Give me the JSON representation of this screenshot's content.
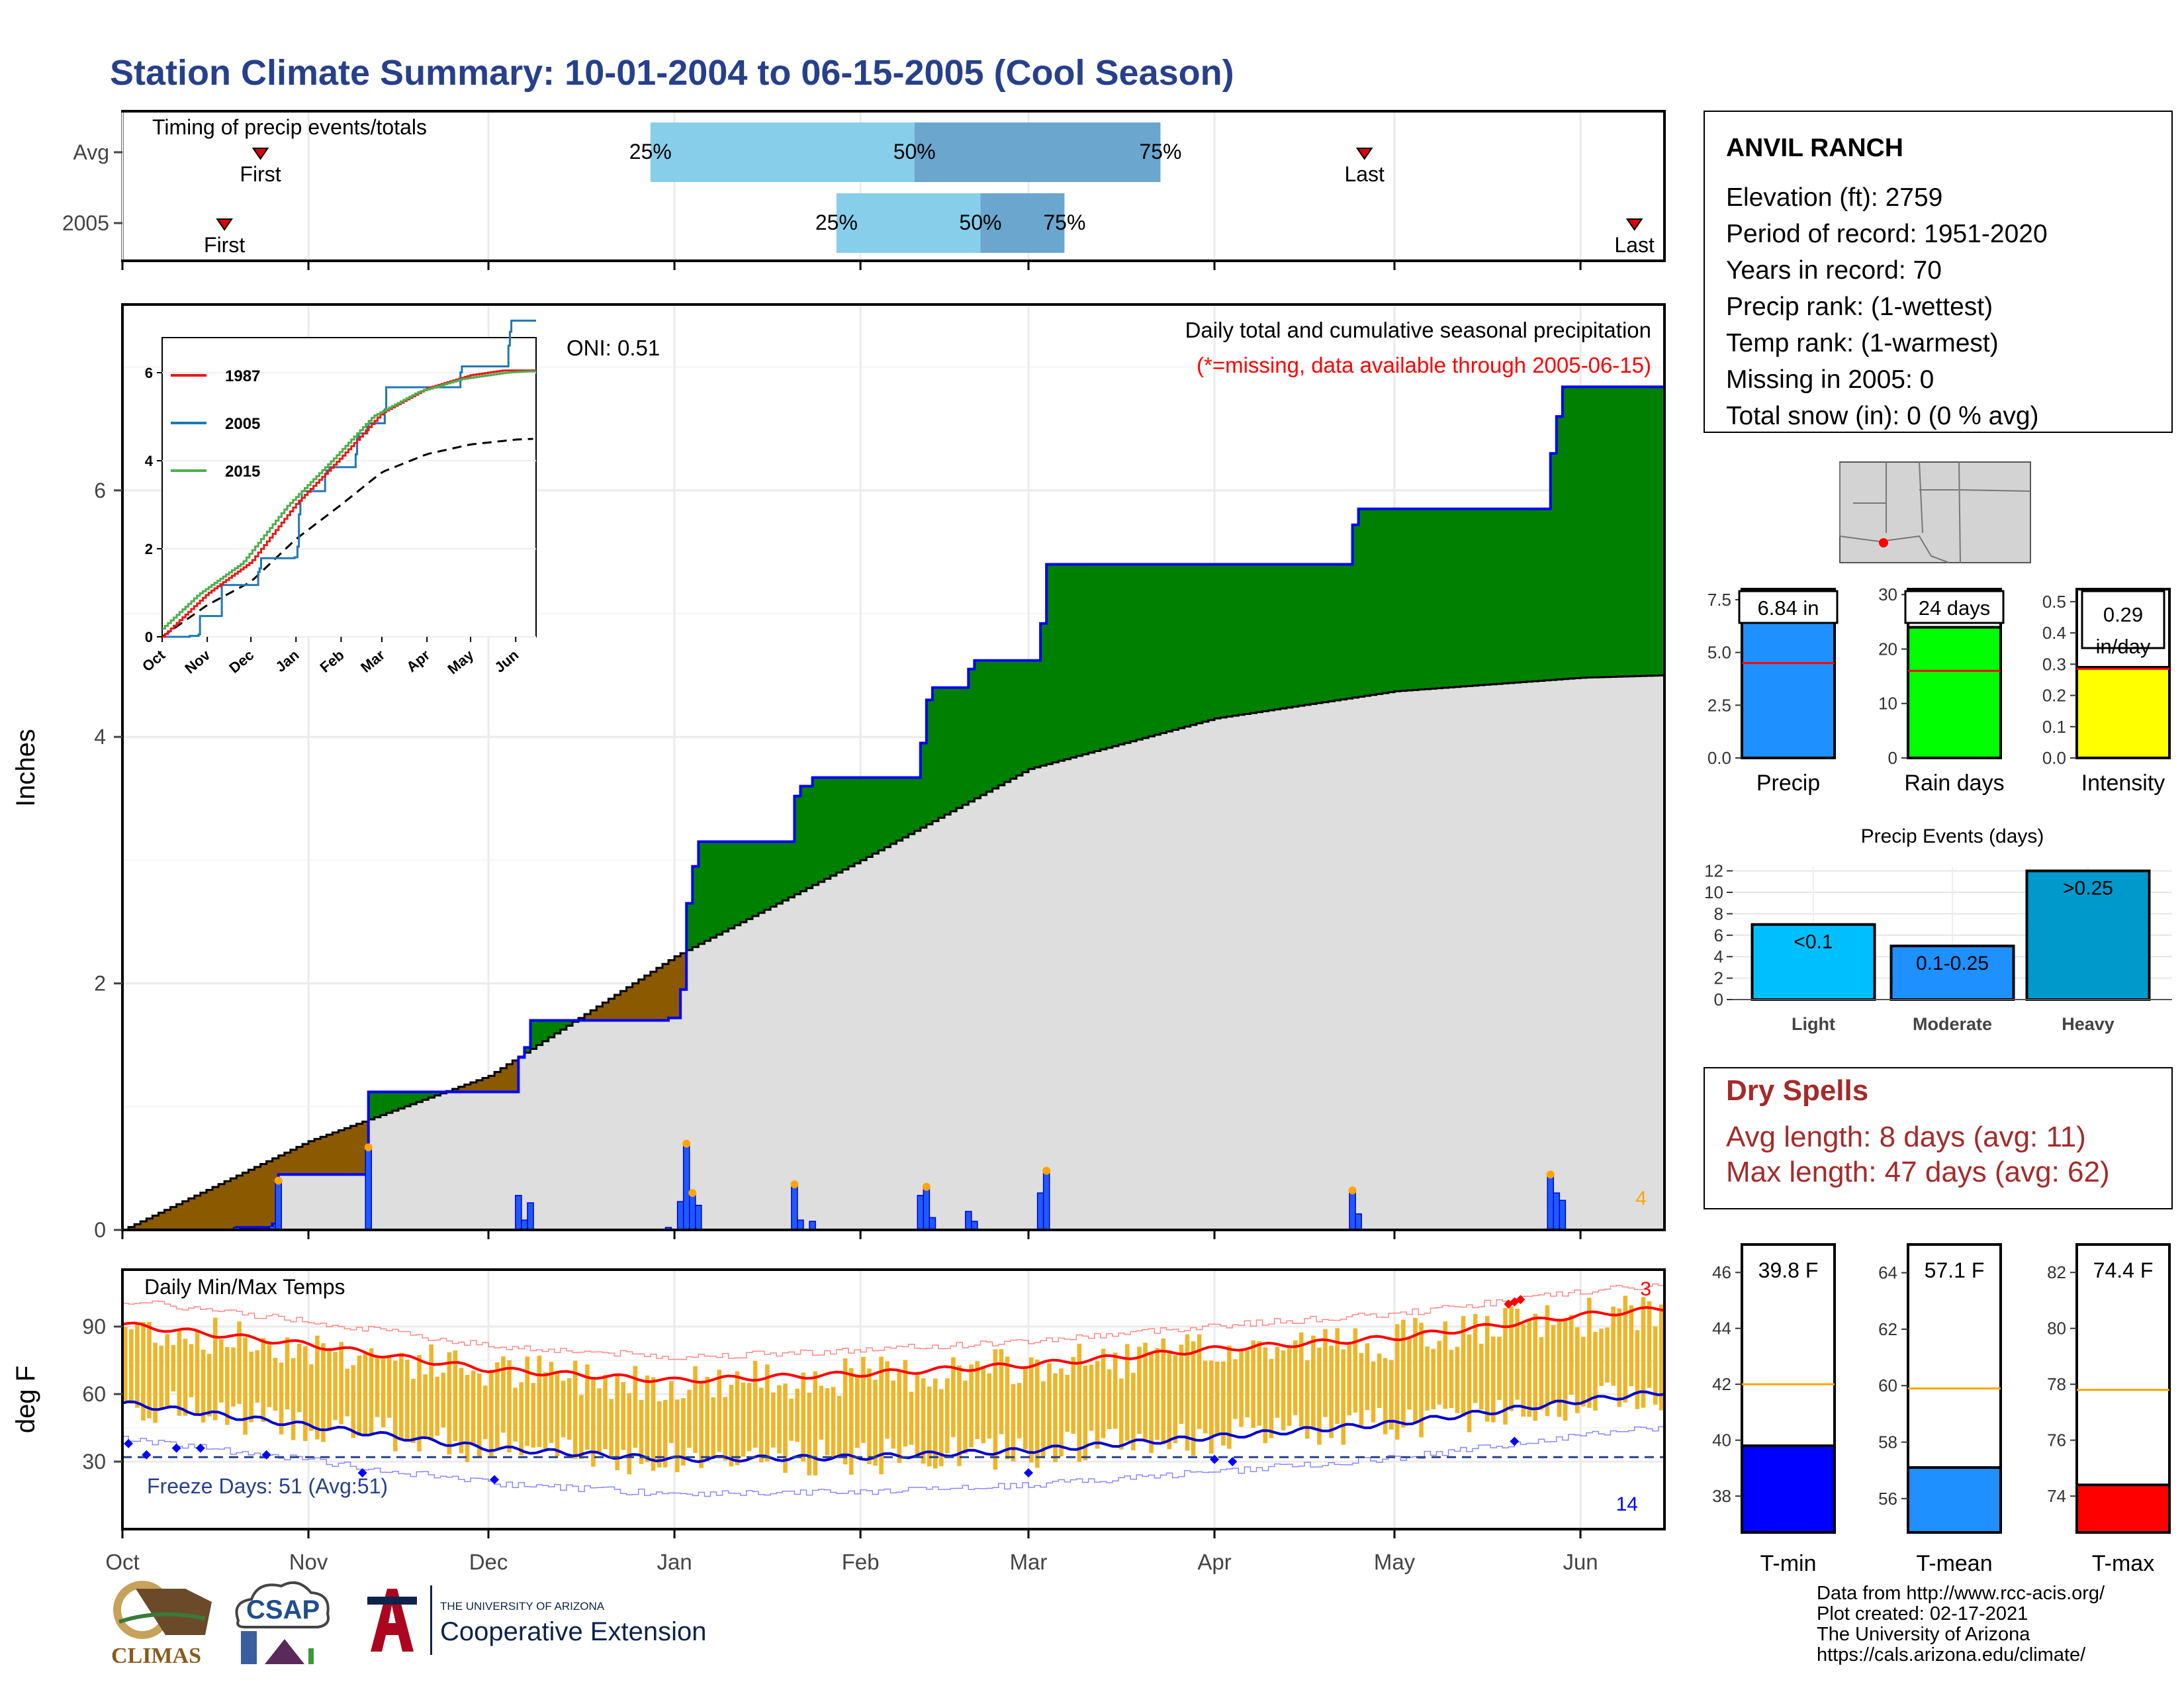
{
  "title": "Station Climate Summary: 10-01-2004 to 06-15-2005 (Cool Season)",
  "timing": {
    "title": "Timing of precip events/totals",
    "rows": [
      {
        "label": "Avg",
        "first_label": "First",
        "last_label": "Last",
        "first": "Oct 24",
        "last": "Apr 26",
        "p25": "Dec 28",
        "p50": "Feb 10",
        "p75": "Mar 23"
      },
      {
        "label": "2005",
        "first_label": "First",
        "last_label": "Last",
        "first": "Oct 18",
        "last": "Jun 10",
        "p25": "Jan 28",
        "p50": "Feb 21",
        "p75": "Mar 7"
      }
    ],
    "pct_labels": [
      "25%",
      "50%",
      "75%"
    ]
  },
  "main_chart": {
    "title": "Daily total and cumulative seasonal precipitation",
    "missing_note": "(*=missing, data available through 2005-06-15)",
    "oni": "ONI: 0.51",
    "ylabel": "Inches",
    "y_ticks": [
      "0",
      "2",
      "4",
      "6"
    ],
    "corner_count": "4"
  },
  "inset": {
    "series_names": [
      "1987",
      "2005",
      "2015"
    ],
    "y_ticks": [
      "0",
      "2",
      "4",
      "6"
    ],
    "x_ticks": [
      "Oct",
      "Nov",
      "Dec",
      "Jan",
      "Feb",
      "Mar",
      "Apr",
      "May",
      "Jun"
    ]
  },
  "temp_chart": {
    "title": "Daily Min/Max Temps",
    "ylabel": "deg F",
    "y_ticks": [
      "30",
      "60",
      "90"
    ],
    "freeze_label": "Freeze Days: 51 (Avg:51)",
    "max_count": "3",
    "min_count": "14"
  },
  "x_months": [
    "Oct",
    "Nov",
    "Dec",
    "Jan",
    "Feb",
    "Mar",
    "Apr",
    "May",
    "Jun"
  ],
  "station": {
    "name": "ANVIL RANCH",
    "lines": [
      "Elevation (ft): 2759",
      "Period of record: 1951-2020",
      "Years in record: 70",
      "Precip rank:  (1-wettest)",
      "Temp rank:  (1-warmest)",
      "Missing in 2005: 0",
      "Total snow (in): 0 (0 % avg)"
    ]
  },
  "totals": [
    {
      "label": "Precip",
      "value_label": "6.84 in",
      "value": 6.84,
      "avg": 4.5,
      "color": "#1e90ff",
      "ticks": [
        "0.0",
        "2.5",
        "5.0",
        "7.5"
      ],
      "max": 8.0
    },
    {
      "label": "Rain days",
      "value_label": "24 days",
      "value": 24,
      "avg": 16,
      "color": "#00ff00",
      "ticks": [
        "0",
        "10",
        "20",
        "30"
      ],
      "max": 31
    },
    {
      "label": "Intensity",
      "value_label": "0.29\nin/day",
      "value_line1": "0.29",
      "value_line2": "in/day",
      "value": 0.29,
      "avg": 0.285,
      "color": "#ffff00",
      "ticks": [
        "0.0",
        "0.1",
        "0.2",
        "0.3",
        "0.4",
        "0.5"
      ],
      "max": 0.54
    }
  ],
  "events": {
    "title": "Precip Events (days)",
    "categories": [
      "Light",
      "Moderate",
      "Heavy"
    ],
    "bar_labels": [
      "<0.1",
      "0.1-0.25",
      ">0.25"
    ],
    "values": [
      7,
      5,
      12
    ],
    "colors": [
      "#00bfff",
      "#1e90ff",
      "#0099cc"
    ],
    "y_ticks": [
      "0",
      "2",
      "4",
      "6",
      "8",
      "10",
      "12"
    ]
  },
  "dry_spells": {
    "title": "Dry Spells",
    "avg_line": "Avg length: 8 days (avg: 11)",
    "max_line": "Max length: 47 days (avg: 62)"
  },
  "temps": [
    {
      "label": "T-min",
      "value_label": "39.8 F",
      "value": 39.8,
      "avg": 42.0,
      "color": "#0000ff",
      "ymin": 36.7,
      "ymax": 47.0,
      "ticks": [
        "38",
        "40",
        "42",
        "44",
        "46"
      ]
    },
    {
      "label": "T-mean",
      "value_label": "57.1 F",
      "value": 57.1,
      "avg": 59.9,
      "color": "#1e90ff",
      "ymin": 54.8,
      "ymax": 65.0,
      "ticks": [
        "56",
        "58",
        "60",
        "62",
        "64"
      ]
    },
    {
      "label": "T-max",
      "value_label": "74.4 F",
      "value": 74.4,
      "avg": 77.8,
      "color": "#ff0000",
      "ymin": 72.7,
      "ymax": 83.0,
      "ticks": [
        "74",
        "76",
        "78",
        "80",
        "82"
      ]
    }
  ],
  "footer": [
    "Data from http://www.rcc-acis.org/",
    "Plot created: 02-17-2021",
    "The University of Arizona",
    "https://cals.arizona.edu/climate/"
  ],
  "logos": {
    "climas": "CLIMAS",
    "csap": "CSAP",
    "ua_small": "THE UNIVERSITY OF ARIZONA",
    "ua_big": "Cooperative Extension"
  },
  "colors": {
    "title": "#27408b",
    "ahead": "#008000",
    "behind": "#8b5a00",
    "normal_fill": "#dedede",
    "daily_bar": "#0000ff",
    "temp_bar": "#f0b429",
    "dry_spell": "#a52a2a"
  },
  "chart_data": [
    {
      "type": "area",
      "title": "Daily total and cumulative seasonal precipitation",
      "ylabel": "Inches",
      "ylim": [
        0,
        7.5
      ],
      "x_range": [
        "2004-10-01",
        "2005-06-15"
      ],
      "series": [
        {
          "name": "cumulative 2005",
          "points": [
            [
              "2004-10-01",
              0
            ],
            [
              "2004-10-20",
              0.02
            ],
            [
              "2004-10-26",
              0.05
            ],
            [
              "2004-10-27",
              0.45
            ],
            [
              "2004-11-10",
              0.45
            ],
            [
              "2004-11-11",
              1.12
            ],
            [
              "2004-12-04",
              1.12
            ],
            [
              "2004-12-06",
              1.4
            ],
            [
              "2004-12-07",
              1.48
            ],
            [
              "2004-12-08",
              1.7
            ],
            [
              "2004-12-30",
              1.7
            ],
            [
              "2004-12-31",
              1.72
            ],
            [
              "2005-01-02",
              1.95
            ],
            [
              "2005-01-03",
              2.65
            ],
            [
              "2005-01-04",
              2.95
            ],
            [
              "2005-01-05",
              3.15
            ],
            [
              "2005-01-20",
              3.15
            ],
            [
              "2005-01-21",
              3.52
            ],
            [
              "2005-01-22",
              3.6
            ],
            [
              "2005-01-24",
              3.67
            ],
            [
              "2005-02-10",
              3.67
            ],
            [
              "2005-02-11",
              3.95
            ],
            [
              "2005-02-12",
              4.3
            ],
            [
              "2005-02-13",
              4.4
            ],
            [
              "2005-02-18",
              4.4
            ],
            [
              "2005-02-19",
              4.55
            ],
            [
              "2005-02-20",
              4.62
            ],
            [
              "2005-03-02",
              4.62
            ],
            [
              "2005-03-03",
              4.92
            ],
            [
              "2005-03-04",
              5.4
            ],
            [
              "2005-04-23",
              5.4
            ],
            [
              "2005-04-24",
              5.72
            ],
            [
              "2005-04-25",
              5.85
            ],
            [
              "2005-05-26",
              5.85
            ],
            [
              "2005-05-27",
              6.3
            ],
            [
              "2005-05-28",
              6.6
            ],
            [
              "2005-05-29",
              6.84
            ],
            [
              "2005-06-15",
              6.84
            ]
          ]
        },
        {
          "name": "cumulative average",
          "points": [
            [
              "2004-10-01",
              0
            ],
            [
              "2004-11-01",
              0.72
            ],
            [
              "2004-12-01",
              1.25
            ],
            [
              "2005-01-01",
              2.22
            ],
            [
              "2005-02-01",
              3.0
            ],
            [
              "2005-03-01",
              3.74
            ],
            [
              "2005-04-01",
              4.15
            ],
            [
              "2005-05-01",
              4.37
            ],
            [
              "2005-06-01",
              4.48
            ],
            [
              "2005-06-15",
              4.5
            ]
          ]
        }
      ]
    },
    {
      "type": "bar",
      "title": "Precip Events (days)",
      "categories": [
        "Light",
        "Moderate",
        "Heavy"
      ],
      "values": [
        7,
        5,
        12
      ]
    },
    {
      "type": "bar",
      "categories": [
        "Precip",
        "Rain days",
        "Intensity"
      ],
      "values": [
        6.84,
        24,
        0.29
      ]
    },
    {
      "type": "bar",
      "categories": [
        "T-min",
        "T-mean",
        "T-max"
      ],
      "values": [
        39.8,
        57.1,
        74.4
      ],
      "averages": [
        42.0,
        59.9,
        77.8
      ]
    },
    {
      "type": "line",
      "title": "Daily Min/Max Temps",
      "ylabel": "deg F",
      "series": [
        {
          "name": "avg max",
          "points": [
            [
              "2004-10-01",
              91
            ],
            [
              "2004-11-01",
              82
            ],
            [
              "2004-12-01",
              71
            ],
            [
              "2005-01-01",
              66
            ],
            [
              "2005-02-01",
              69
            ],
            [
              "2005-03-01",
              73
            ],
            [
              "2005-04-01",
              80
            ],
            [
              "2005-05-01",
              85
            ],
            [
              "2005-06-01",
              95
            ],
            [
              "2005-06-15",
              98
            ]
          ]
        },
        {
          "name": "avg min",
          "points": [
            [
              "2004-10-01",
              56
            ],
            [
              "2004-11-01",
              46
            ],
            [
              "2004-12-01",
              36
            ],
            [
              "2005-01-01",
              31
            ],
            [
              "2005-02-01",
              32
            ],
            [
              "2005-03-01",
              35
            ],
            [
              "2005-04-01",
              41
            ],
            [
              "2005-05-01",
              47
            ],
            [
              "2005-06-01",
              57
            ],
            [
              "2005-06-15",
              61
            ]
          ]
        }
      ]
    }
  ]
}
